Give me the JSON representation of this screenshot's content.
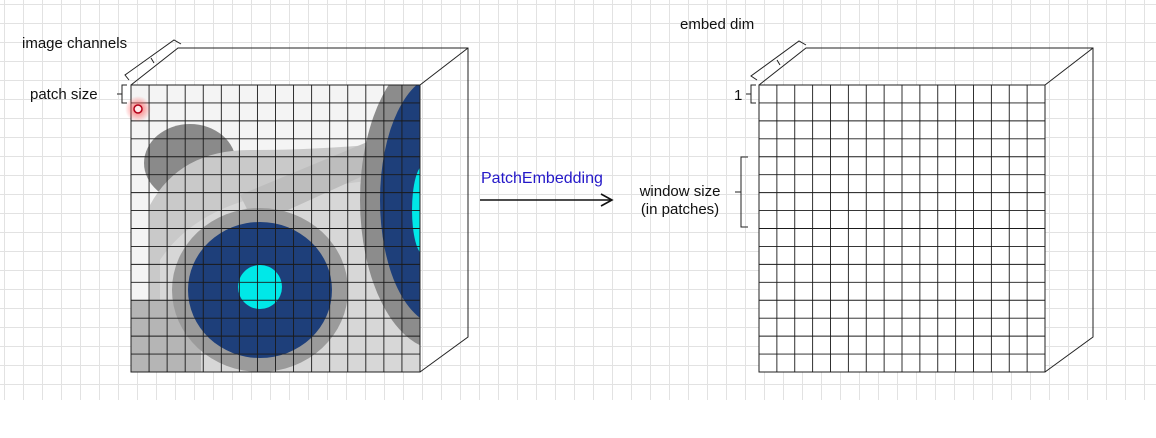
{
  "labels": {
    "image_channels": "image channels",
    "patch_size": "patch size",
    "patch_embedding": "PatchEmbedding",
    "window_size_line1": "window size",
    "window_size_line2": "(in patches)",
    "embed_dim": "embed dim",
    "one": "1"
  },
  "colors": {
    "arrow_label": "#2418c8",
    "eye_blue": "#1e3f7a",
    "eye_cyan": "#00e8e8",
    "cursor_red": "#e0001b",
    "grid_line": "#111111",
    "background_grid": "#e2e2e2"
  }
}
